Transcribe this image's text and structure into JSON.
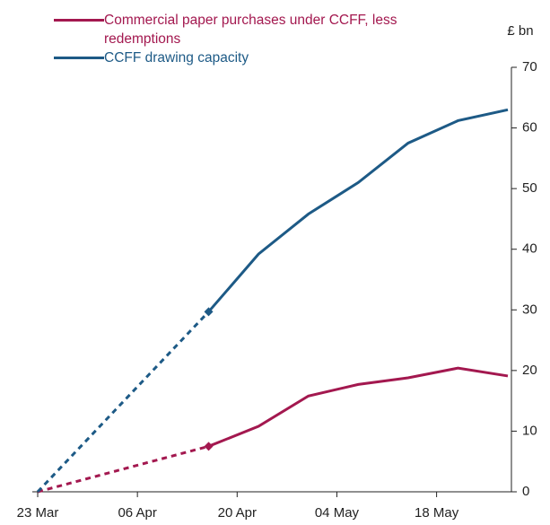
{
  "chart_data": {
    "type": "line",
    "y_axis_label": "£ bn",
    "x": [
      "23 Mar",
      "16 Apr",
      "23 Apr",
      "30 Apr",
      "07 May",
      "14 May",
      "21 May",
      "28 May"
    ],
    "xlim": [
      "23 Mar",
      "28 May"
    ],
    "xticks": [
      "23 Mar",
      "06 Apr",
      "20 Apr",
      "04 May",
      "18 May"
    ],
    "ylim": [
      0,
      70
    ],
    "yticks": [
      0,
      10,
      20,
      30,
      40,
      50,
      60,
      70
    ],
    "y_axis_side": "right",
    "grid": false,
    "legend_position": "top-left",
    "series": [
      {
        "name": "Commercial paper purchases under CCFF, less redemptions",
        "color": "#a3184f",
        "values": [
          0,
          7.5,
          10.8,
          15.8,
          17.7,
          18.8,
          20.4,
          19.1
        ],
        "dashed_first_segment": true,
        "diamond_at_dash_end": true
      },
      {
        "name": "CCFF drawing capacity",
        "color": "#1d5a86",
        "values": [
          0,
          29.7,
          39.2,
          45.8,
          51.0,
          57.5,
          61.2,
          63.0
        ],
        "dashed_first_segment": true,
        "diamond_at_dash_end": true
      }
    ]
  }
}
